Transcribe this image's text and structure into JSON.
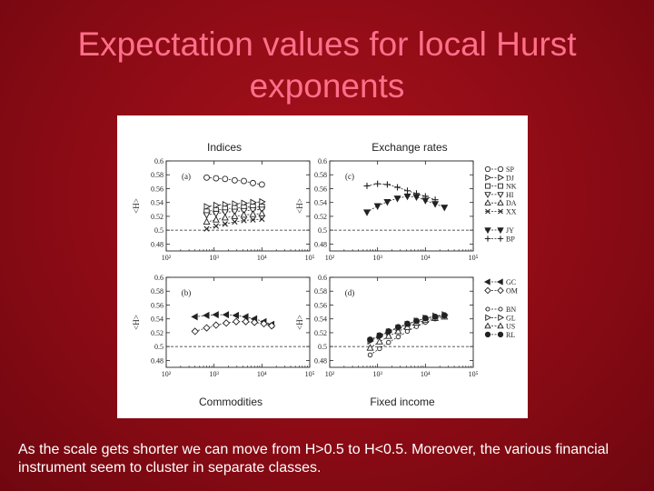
{
  "slide": {
    "title_line1": "Expectation values for local Hurst",
    "title_line2": "exponents",
    "caption": "As the scale gets shorter we can move from H>0.5 to H<0.5. Moreover, the various financial instrument seem to cluster in separate classes."
  },
  "colors": {
    "background": "#9a0e18",
    "title": "#ff6f8a",
    "caption": "#ffffff",
    "panel_bg": "#ffffff",
    "ink": "#222222"
  },
  "chart_data": [
    {
      "type": "line",
      "panel_label": "(a)",
      "title": "Indices",
      "xlabel": "",
      "ylabel": "<H>",
      "x_scale": "log",
      "xlim": [
        100,
        100000
      ],
      "ylim": [
        0.47,
        0.6
      ],
      "x_ticks": [
        "10²",
        "10³",
        "10⁴",
        "10⁵"
      ],
      "y_ticks": [
        "0.48",
        "0.5",
        "0.52",
        "0.54",
        "0.56",
        "0.58",
        "0.6"
      ],
      "reference_line": 0.5,
      "series": [
        {
          "name": "SP",
          "marker": "circle",
          "x": [
            700,
            1100,
            1700,
            2700,
            4200,
            6500,
            10000
          ],
          "y": [
            0.576,
            0.575,
            0.574,
            0.572,
            0.571,
            0.568,
            0.566
          ]
        },
        {
          "name": "DJ",
          "marker": "triangle-right",
          "x": [
            700,
            1100,
            1700,
            2700,
            4200,
            6500,
            10000
          ],
          "y": [
            0.534,
            0.536,
            0.537,
            0.538,
            0.539,
            0.54,
            0.541
          ]
        },
        {
          "name": "NK",
          "marker": "square",
          "x": [
            700,
            1100,
            1700,
            2700,
            4200,
            6500,
            10000
          ],
          "y": [
            0.527,
            0.529,
            0.531,
            0.532,
            0.533,
            0.534,
            0.534
          ]
        },
        {
          "name": "HI",
          "marker": "triangle-down",
          "x": [
            700,
            1100,
            1700,
            2700,
            4200,
            6500,
            10000
          ],
          "y": [
            0.522,
            0.524,
            0.526,
            0.527,
            0.528,
            0.529,
            0.53
          ]
        },
        {
          "name": "DA",
          "marker": "triangle-up",
          "x": [
            700,
            1100,
            1700,
            2700,
            4200,
            6500,
            10000
          ],
          "y": [
            0.512,
            0.515,
            0.518,
            0.52,
            0.522,
            0.523,
            0.524
          ]
        },
        {
          "name": "XX",
          "marker": "cross",
          "x": [
            700,
            1100,
            1700,
            2700,
            4200,
            6500,
            10000
          ],
          "y": [
            0.502,
            0.506,
            0.509,
            0.512,
            0.514,
            0.515,
            0.516
          ]
        }
      ]
    },
    {
      "type": "line",
      "panel_label": "(c)",
      "title": "Exchange rates",
      "xlabel": "",
      "ylabel": "<H>",
      "x_scale": "log",
      "xlim": [
        100,
        100000
      ],
      "ylim": [
        0.47,
        0.6
      ],
      "x_ticks": [
        "10²",
        "10³",
        "10⁴",
        "10⁵"
      ],
      "y_ticks": [
        "0.48",
        "0.5",
        "0.52",
        "0.54",
        "0.56",
        "0.58",
        "0.6"
      ],
      "reference_line": 0.5,
      "series": [
        {
          "name": "JY",
          "marker": "triangle-down-filled",
          "x": [
            600,
            1000,
            1600,
            2600,
            4200,
            6500,
            10000,
            16000,
            25000
          ],
          "y": [
            0.526,
            0.535,
            0.541,
            0.546,
            0.549,
            0.548,
            0.543,
            0.538,
            0.533
          ]
        },
        {
          "name": "BP",
          "marker": "plus",
          "x": [
            600,
            1000,
            1600,
            2600,
            4200,
            6500,
            10000,
            16000
          ],
          "y": [
            0.564,
            0.567,
            0.566,
            0.562,
            0.557,
            0.553,
            0.549,
            0.544
          ]
        }
      ]
    },
    {
      "type": "line",
      "panel_label": "(b)",
      "title": "Commodities",
      "xlabel": "",
      "ylabel": "<H>",
      "x_scale": "log",
      "xlim": [
        100,
        100000
      ],
      "ylim": [
        0.47,
        0.6
      ],
      "x_ticks": [
        "10²",
        "10³",
        "10⁴",
        "10⁵"
      ],
      "y_ticks": [
        "0.48",
        "0.5",
        "0.52",
        "0.54",
        "0.56",
        "0.58",
        "0.6"
      ],
      "reference_line": 0.5,
      "series": [
        {
          "name": "GC",
          "marker": "triangle-left-filled",
          "x": [
            400,
            700,
            1100,
            1800,
            2900,
            4600,
            7000,
            11000,
            16000
          ],
          "y": [
            0.543,
            0.545,
            0.546,
            0.546,
            0.545,
            0.543,
            0.54,
            0.536,
            0.532
          ]
        },
        {
          "name": "OM",
          "marker": "diamond",
          "x": [
            400,
            700,
            1100,
            1800,
            2900,
            4600,
            7000,
            11000,
            16000
          ],
          "y": [
            0.522,
            0.527,
            0.531,
            0.534,
            0.536,
            0.536,
            0.535,
            0.533,
            0.53
          ]
        }
      ]
    },
    {
      "type": "line",
      "panel_label": "(d)",
      "title": "Fixed income",
      "xlabel": "",
      "ylabel": "<H>",
      "x_scale": "log",
      "xlim": [
        100,
        100000
      ],
      "ylim": [
        0.47,
        0.6
      ],
      "x_ticks": [
        "10²",
        "10³",
        "10⁴",
        "10⁵"
      ],
      "y_ticks": [
        "0.48",
        "0.5",
        "0.52",
        "0.54",
        "0.56",
        "0.58",
        "0.6"
      ],
      "reference_line": 0.5,
      "series": [
        {
          "name": "BN",
          "marker": "circle-small",
          "x": [
            700,
            1100,
            1700,
            2700,
            4200,
            6500,
            10000,
            16000,
            25000
          ],
          "y": [
            0.488,
            0.497,
            0.506,
            0.514,
            0.522,
            0.529,
            0.535,
            0.54,
            0.544
          ]
        },
        {
          "name": "GL",
          "marker": "triangle-right",
          "x": [
            700,
            1100,
            1700,
            2700,
            4200,
            6500,
            10000,
            16000,
            25000
          ],
          "y": [
            0.508,
            0.515,
            0.521,
            0.527,
            0.532,
            0.537,
            0.541,
            0.544,
            0.546
          ]
        },
        {
          "name": "US",
          "marker": "triangle-up",
          "x": [
            700,
            1100,
            1700,
            2700,
            4200,
            6500,
            10000,
            16000,
            25000
          ],
          "y": [
            0.498,
            0.507,
            0.515,
            0.522,
            0.528,
            0.534,
            0.538,
            0.541,
            0.543
          ]
        },
        {
          "name": "RL",
          "marker": "circle-filled",
          "x": [
            700,
            1100,
            1700,
            2700,
            4200,
            6500,
            10000,
            16000,
            25000
          ],
          "y": [
            0.51,
            0.516,
            0.522,
            0.528,
            0.533,
            0.537,
            0.541,
            0.543,
            0.545
          ]
        }
      ]
    }
  ]
}
